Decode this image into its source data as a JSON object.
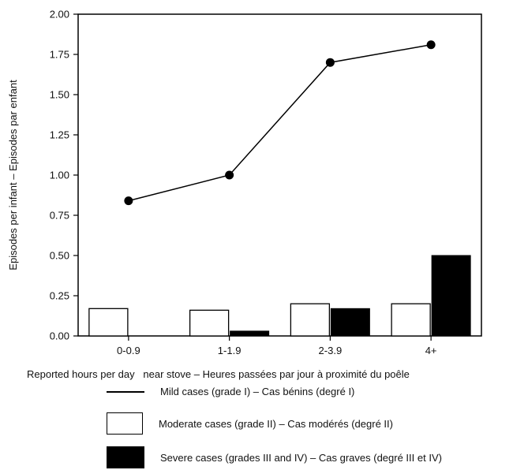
{
  "chart_data": {
    "type": "bar",
    "categories": [
      "0-0.9",
      "1-1.9",
      "2-3.9",
      "4+"
    ],
    "xlabel": "Reported hours per day   near stove – Heures passées par jour à proximité du poêle",
    "ylabel": "Episodes per infant – Episodes par enfant",
    "ylim": [
      0,
      2.0
    ],
    "yticks": [
      "0.00",
      "0.25",
      "0.50",
      "0.75",
      "1.00",
      "1.25",
      "1.50",
      "1.75",
      "2.00"
    ],
    "grid": false,
    "legend_position": "bottom",
    "series": [
      {
        "name": "Mild cases (grade I) – Cas bénins (degré I)",
        "kind": "line",
        "values": [
          0.84,
          1.0,
          1.7,
          1.81
        ],
        "color": "#000000"
      },
      {
        "name": "Moderate cases (grade II) – Cas modérés (degré II)",
        "kind": "bar",
        "values": [
          0.17,
          0.16,
          0.2,
          0.2
        ],
        "color": "#ffffff"
      },
      {
        "name": "Severe cases (grades III and IV) – Cas graves (degré III et IV)",
        "kind": "bar",
        "values": [
          0.0,
          0.03,
          0.17,
          0.5
        ],
        "color": "#000000"
      }
    ]
  }
}
